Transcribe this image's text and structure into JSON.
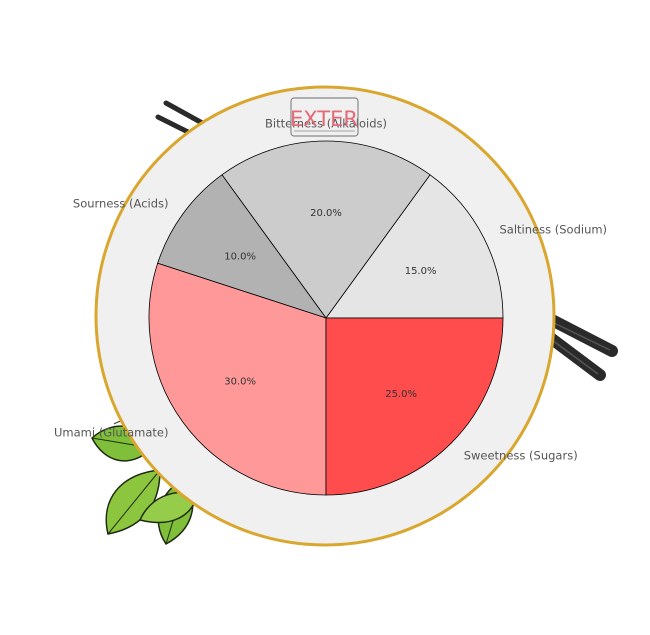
{
  "logo": {
    "text": "EXTER"
  },
  "chart_data": {
    "type": "pie",
    "title": "",
    "start_angle_deg": 0,
    "direction": "counterclockwise",
    "slices": [
      {
        "label": "Saltiness (Sodium)",
        "value": 15.0,
        "pct_label": "15.0%",
        "color": "#e5e5e5"
      },
      {
        "label": "Bitterness (Alkaloids)",
        "value": 20.0,
        "pct_label": "20.0%",
        "color": "#cccccc"
      },
      {
        "label": "Sourness (Acids)",
        "value": 10.0,
        "pct_label": "10.0%",
        "color": "#b2b2b2"
      },
      {
        "label": "Umami (Glutamate)",
        "value": 30.0,
        "pct_label": "30.0%",
        "color": "#ff9999"
      },
      {
        "label": "Sweetness (Sugars)",
        "value": 25.0,
        "pct_label": "25.0%",
        "color": "#ff4c4c"
      }
    ]
  },
  "colors": {
    "plate_rim": "#d9a62e",
    "plate_fill": "#f0f0f0",
    "slice_edge": "#000000",
    "leaf_green": "#7fbf3a",
    "chopstick": "#2a2a2a"
  }
}
